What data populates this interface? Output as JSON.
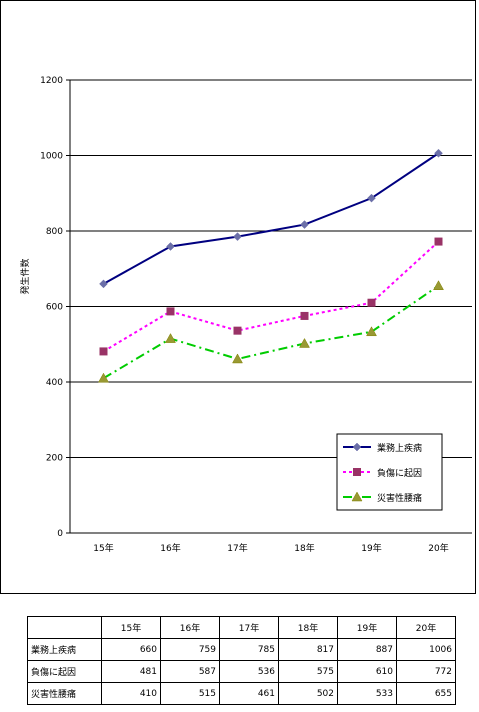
{
  "chart_data": {
    "type": "line",
    "categories": [
      "15年",
      "16年",
      "17年",
      "18年",
      "19年",
      "20年"
    ],
    "series": [
      {
        "name": "業務上疾病",
        "values": [
          660,
          759,
          785,
          817,
          887,
          1006
        ],
        "color": "#000080",
        "marker": "diamond",
        "marker_color": "#6b6fa8",
        "line": "solid"
      },
      {
        "name": "負傷に起因",
        "values": [
          481,
          587,
          536,
          575,
          610,
          772
        ],
        "color": "#ff00ff",
        "marker": "square",
        "marker_color": "#993366",
        "line": "dotted"
      },
      {
        "name": "災害性腰痛",
        "values": [
          410,
          515,
          461,
          502,
          533,
          655
        ],
        "color": "#00cc00",
        "marker": "triangle",
        "marker_color": "#999933",
        "line": "dashdot"
      }
    ],
    "ylabel": "発生件数",
    "xlabel": "",
    "title": "",
    "ylim": [
      0,
      1200
    ],
    "yticks": [
      0,
      200,
      400,
      600,
      800,
      1000,
      1200
    ],
    "grid": true,
    "legend": "bottom-right"
  },
  "table": {
    "header": [
      "15年",
      "16年",
      "17年",
      "18年",
      "19年",
      "20年"
    ],
    "rows": [
      {
        "label": "業務上疾病",
        "values": [
          "660",
          "759",
          "785",
          "817",
          "887",
          "1006"
        ]
      },
      {
        "label": "負傷に起因",
        "values": [
          "481",
          "587",
          "536",
          "575",
          "610",
          "772"
        ]
      },
      {
        "label": "災害性腰痛",
        "values": [
          "410",
          "515",
          "461",
          "502",
          "533",
          "655"
        ]
      }
    ]
  }
}
